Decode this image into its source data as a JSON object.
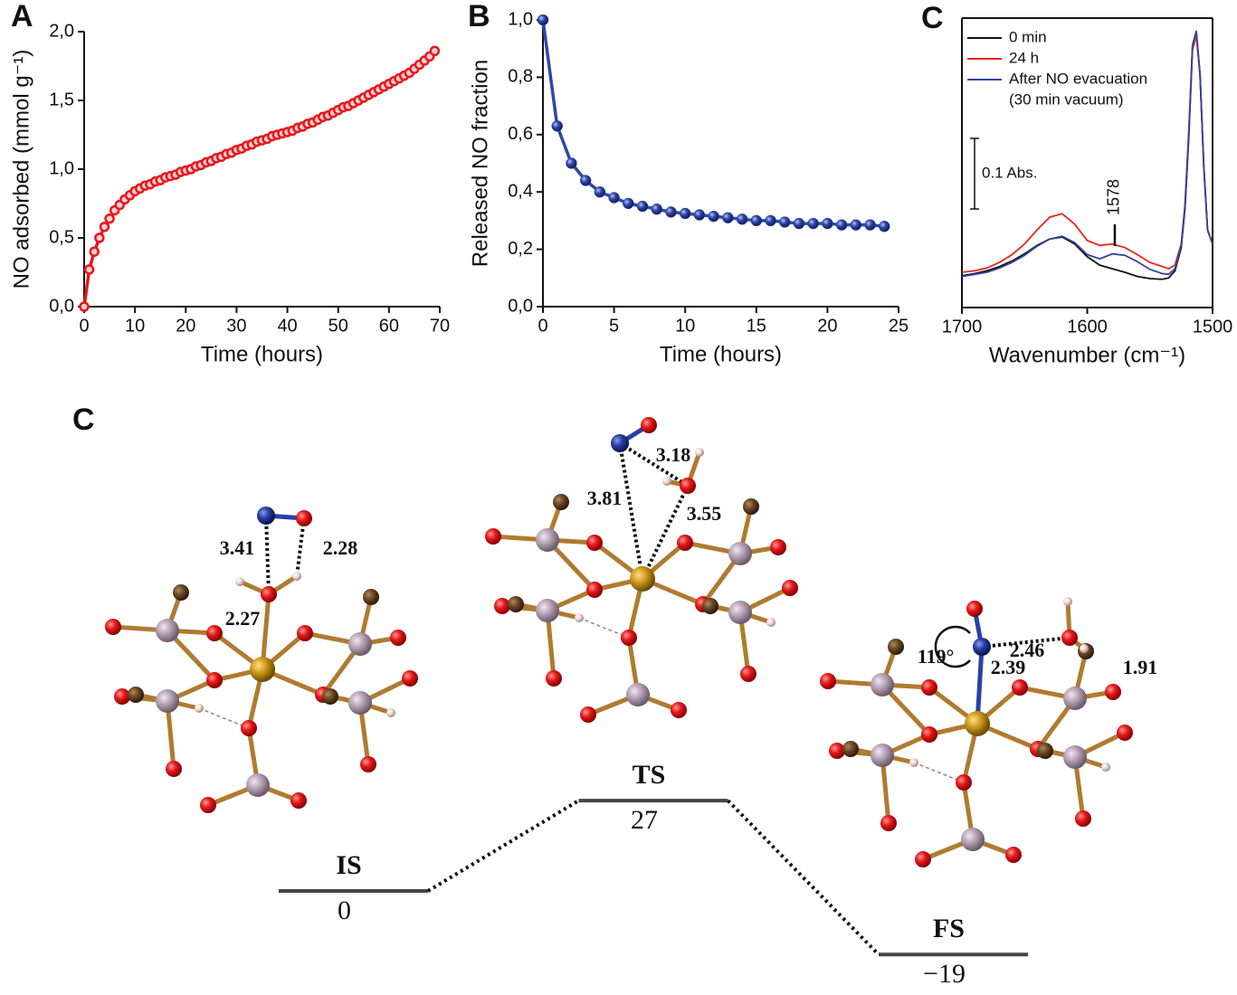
{
  "chart_data": [
    {
      "type": "line",
      "label": "A",
      "xlabel": "Time (hours)",
      "ylabel": "NO adsorbed (mmol g⁻¹)",
      "markers": true,
      "x": [
        0,
        1,
        2,
        3,
        4,
        5,
        6,
        7,
        8,
        9,
        10,
        11,
        12,
        13,
        14,
        15,
        16,
        17,
        18,
        19,
        20,
        21,
        22,
        23,
        24,
        25,
        26,
        27,
        28,
        29,
        30,
        31,
        32,
        33,
        34,
        35,
        36,
        37,
        38,
        39,
        40,
        41,
        42,
        43,
        44,
        45,
        46,
        47,
        48,
        49,
        50,
        51,
        52,
        53,
        54,
        55,
        56,
        57,
        58,
        59,
        60,
        61,
        62,
        63,
        64,
        65,
        66,
        67,
        68,
        69
      ],
      "series": [
        {
          "color": "#e8161c",
          "values": [
            0,
            0.27,
            0.4,
            0.5,
            0.58,
            0.64,
            0.7,
            0.74,
            0.78,
            0.81,
            0.84,
            0.86,
            0.88,
            0.89,
            0.91,
            0.92,
            0.94,
            0.95,
            0.96,
            0.98,
            0.99,
            1.0,
            1.02,
            1.03,
            1.05,
            1.06,
            1.08,
            1.09,
            1.11,
            1.12,
            1.14,
            1.15,
            1.17,
            1.18,
            1.2,
            1.21,
            1.22,
            1.24,
            1.25,
            1.26,
            1.27,
            1.28,
            1.3,
            1.31,
            1.33,
            1.34,
            1.36,
            1.38,
            1.39,
            1.41,
            1.43,
            1.45,
            1.46,
            1.48,
            1.5,
            1.52,
            1.54,
            1.56,
            1.58,
            1.6,
            1.62,
            1.64,
            1.66,
            1.68,
            1.7,
            1.73,
            1.76,
            1.79,
            1.82,
            1.86
          ]
        }
      ],
      "xlim": [
        0,
        70
      ],
      "xticks": [
        0,
        10,
        20,
        30,
        40,
        50,
        60,
        70
      ],
      "ylim": [
        0,
        2.0
      ],
      "yticks": [
        {
          "value": 0,
          "label": "0,0"
        },
        {
          "value": 0.5,
          "label": "0,5"
        },
        {
          "value": 1.0,
          "label": "1,0"
        },
        {
          "value": 1.5,
          "label": "1,5"
        },
        {
          "value": 2.0,
          "label": "2,0"
        }
      ]
    },
    {
      "type": "line",
      "label": "B",
      "xlabel": "Time (hours)",
      "ylabel": "Released  NO fraction",
      "markers": true,
      "x": [
        0,
        1,
        2,
        3,
        4,
        5,
        6,
        7,
        8,
        9,
        10,
        11,
        12,
        13,
        14,
        15,
        16,
        17,
        18,
        19,
        20,
        21,
        22,
        23,
        24
      ],
      "series": [
        {
          "color": "#2f47a8",
          "values": [
            1.0,
            0.63,
            0.5,
            0.44,
            0.4,
            0.38,
            0.36,
            0.35,
            0.34,
            0.33,
            0.325,
            0.32,
            0.315,
            0.31,
            0.305,
            0.3,
            0.3,
            0.295,
            0.29,
            0.29,
            0.29,
            0.285,
            0.285,
            0.285,
            0.28
          ]
        }
      ],
      "xlim": [
        0,
        25
      ],
      "xticks": [
        0,
        5,
        10,
        15,
        20,
        25
      ],
      "ylim": [
        0,
        1.0
      ],
      "yticks": [
        {
          "value": 0,
          "label": "0,0"
        },
        {
          "value": 0.2,
          "label": "0,2"
        },
        {
          "value": 0.4,
          "label": "0,4"
        },
        {
          "value": 0.6,
          "label": "0,6"
        },
        {
          "value": 0.8,
          "label": "0,8"
        },
        {
          "value": 1.0,
          "label": "1,0"
        }
      ]
    },
    {
      "type": "spectrum",
      "label": "C",
      "xlabel": "Wavenumber (cm⁻¹)",
      "box": true,
      "legend": "upper-left",
      "x": [
        1700,
        1690,
        1680,
        1670,
        1660,
        1650,
        1640,
        1630,
        1620,
        1610,
        1600,
        1590,
        1580,
        1570,
        1560,
        1550,
        1540,
        1535,
        1530,
        1525,
        1522,
        1519,
        1516,
        1513,
        1510,
        1507,
        1504,
        1500
      ],
      "series": [
        {
          "name": "0 min",
          "color": "#111111",
          "values": [
            0.045,
            0.048,
            0.052,
            0.058,
            0.066,
            0.076,
            0.088,
            0.097,
            0.1,
            0.09,
            0.072,
            0.06,
            0.055,
            0.05,
            0.044,
            0.041,
            0.04,
            0.042,
            0.052,
            0.085,
            0.14,
            0.24,
            0.37,
            0.39,
            0.33,
            0.2,
            0.11,
            0.09
          ]
        },
        {
          "name": "24 h",
          "color": "#e8261c",
          "values": [
            0.05,
            0.052,
            0.056,
            0.064,
            0.075,
            0.09,
            0.11,
            0.128,
            0.133,
            0.118,
            0.095,
            0.088,
            0.09,
            0.085,
            0.075,
            0.064,
            0.058,
            0.055,
            0.06,
            0.09,
            0.145,
            0.245,
            0.365,
            0.385,
            0.33,
            0.2,
            0.11,
            0.09
          ]
        },
        {
          "name": "After NO evacuation",
          "color": "#3344a0",
          "values": [
            0.044,
            0.047,
            0.05,
            0.056,
            0.064,
            0.074,
            0.087,
            0.097,
            0.101,
            0.092,
            0.075,
            0.069,
            0.076,
            0.074,
            0.065,
            0.054,
            0.048,
            0.047,
            0.055,
            0.088,
            0.145,
            0.248,
            0.372,
            0.392,
            0.33,
            0.2,
            0.11,
            0.09
          ]
        }
      ],
      "legend_note": "(30 min vacuum)",
      "xlim": [
        1700,
        1500
      ],
      "xticks": [
        1700,
        1600,
        1500
      ],
      "ylim": [
        0,
        0.41
      ],
      "scale_bar": {
        "value": 0.1,
        "label": "0.1 Abs."
      },
      "annotations": [
        {
          "x": 1578,
          "label": "1578"
        }
      ]
    },
    {
      "type": "energy",
      "label": "C",
      "categories": [
        "IS",
        "TS",
        "FS"
      ],
      "values": [
        0,
        27,
        -19
      ],
      "value_labels": [
        "0",
        "27",
        "−19"
      ]
    }
  ],
  "structures": [
    {
      "distances": [
        "3.41",
        "2.28",
        "2.27"
      ]
    },
    {
      "distances": [
        "3.81",
        "3.18",
        "3.55"
      ]
    },
    {
      "distances": [
        "2.46",
        "2.39",
        "1.91"
      ],
      "angle": "119°"
    }
  ]
}
